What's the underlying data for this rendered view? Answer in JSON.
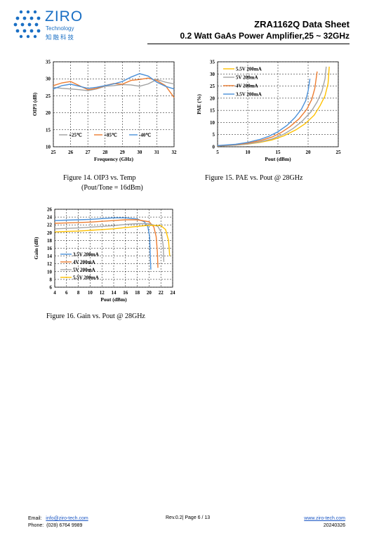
{
  "header": {
    "brand_name": "ZIRO",
    "brand_sub": "Technology",
    "brand_cn": "知融科技",
    "doc_title": "ZRA1162Q Data Sheet",
    "doc_subtitle": "0.2 Watt GaAs Power Amplifier,25 ~ 32GHz",
    "brand_color": "#1a6fc4"
  },
  "figures": [
    {
      "caption": "Figure 14. OIP3 vs. Temp",
      "caption2": "(Pout/Tone = 16dBm)"
    },
    {
      "caption": "Figure 15. PAE vs. Pout @ 28GHz"
    },
    {
      "caption": "Figure 16. Gain vs. Pout @ 28GHz"
    }
  ],
  "chart_data": [
    {
      "type": "line",
      "xlabel": "Frequency (GHz)",
      "ylabel": "OIP3 (dB)",
      "xlim": [
        25,
        32
      ],
      "ylim": [
        10,
        35
      ],
      "xticks": [
        "25",
        "26",
        "27",
        "28",
        "29",
        "30",
        "31",
        "32"
      ],
      "yticks": [
        "10",
        "15",
        "20",
        "25",
        "30",
        "35"
      ],
      "grid": "dashed",
      "legend": "bottom",
      "series": [
        {
          "name": "+25℃",
          "color": "#a0a0a0",
          "x": [
            25,
            25.5,
            26,
            26.5,
            27,
            27.5,
            28,
            28.5,
            29,
            29.5,
            30,
            30.5,
            31,
            31.5,
            32
          ],
          "y": [
            27.5,
            27.2,
            27.0,
            26.8,
            26.5,
            27.0,
            27.8,
            28.0,
            28.3,
            28.2,
            27.8,
            28.5,
            29.8,
            29.0,
            28.5
          ]
        },
        {
          "name": "+85℃",
          "color": "#ed7d31",
          "x": [
            25,
            25.5,
            26,
            26.5,
            27,
            27.5,
            28,
            28.5,
            29,
            29.5,
            30,
            30.5,
            31,
            31.5,
            32
          ],
          "y": [
            28.0,
            28.8,
            29.2,
            28.0,
            26.8,
            27.2,
            28.0,
            28.6,
            28.4,
            29.5,
            29.8,
            30.2,
            29.5,
            28.0,
            24.5
          ]
        },
        {
          "name": "-40℃",
          "color": "#4a90d9",
          "x": [
            25,
            25.5,
            26,
            26.5,
            27,
            27.5,
            28,
            28.5,
            29,
            29.5,
            30,
            30.5,
            31,
            31.5,
            32
          ],
          "y": [
            27.0,
            28.0,
            28.4,
            27.8,
            27.2,
            27.5,
            28.0,
            28.5,
            29.2,
            30.5,
            31.5,
            30.8,
            29.0,
            27.8,
            27.0
          ]
        }
      ]
    },
    {
      "type": "line",
      "xlabel": "Pout (dBm)",
      "ylabel": "PAE (%)",
      "xlim": [
        5,
        25
      ],
      "ylim": [
        0,
        35
      ],
      "xticks": [
        "5",
        "10",
        "15",
        "20",
        "25"
      ],
      "yticks": [
        "0",
        "5",
        "10",
        "15",
        "20",
        "25",
        "30",
        "35"
      ],
      "grid": "dashed",
      "legend": "top-left",
      "series": [
        {
          "name": "5.5V 200mA",
          "color": "#ffc000",
          "x": [
            5,
            8,
            10,
            12,
            14,
            16,
            18,
            19.5,
            21,
            22,
            22.8,
            23.3,
            23.5
          ],
          "y": [
            0.3,
            0.7,
            1.1,
            1.8,
            2.8,
            4.5,
            7.0,
            9.5,
            13.0,
            17.0,
            21.0,
            26.0,
            33.0
          ]
        },
        {
          "name": "5V    200mA",
          "color": "#a5a5a5",
          "x": [
            5,
            8,
            10,
            12,
            14,
            16,
            17.5,
            19,
            20.5,
            21.5,
            22.3,
            22.8,
            23.0
          ],
          "y": [
            0.3,
            0.7,
            1.2,
            2.0,
            3.2,
            5.2,
            7.5,
            10.5,
            14.5,
            18.5,
            23.0,
            28.0,
            33.0
          ]
        },
        {
          "name": "4V    200mA",
          "color": "#ed7d31",
          "x": [
            5,
            8,
            10,
            12,
            14,
            15.5,
            17,
            18.5,
            19.8,
            20.6,
            21.1,
            21.5
          ],
          "y": [
            0.4,
            0.9,
            1.5,
            2.5,
            4.0,
            5.8,
            8.3,
            11.5,
            15.5,
            19.5,
            24.0,
            31.0
          ]
        },
        {
          "name": "3.5V 200mA",
          "color": "#4a90d9",
          "x": [
            5,
            8,
            10,
            12,
            13.5,
            15,
            16.5,
            17.8,
            18.9,
            19.6,
            20.0,
            20.3
          ],
          "y": [
            0.5,
            1.0,
            1.8,
            3.0,
            4.3,
            6.2,
            8.8,
            12.0,
            15.5,
            19.0,
            23.0,
            28.0
          ]
        }
      ]
    },
    {
      "type": "line",
      "xlabel": "Pout (dBm)",
      "ylabel": "Gain (dB)",
      "xlim": [
        4,
        24
      ],
      "ylim": [
        6,
        26
      ],
      "xticks": [
        "4",
        "6",
        "8",
        "10",
        "12",
        "14",
        "16",
        "18",
        "20",
        "22",
        "24"
      ],
      "yticks": [
        "6",
        "8",
        "10",
        "12",
        "14",
        "16",
        "18",
        "20",
        "22",
        "24",
        "26"
      ],
      "grid": "dashed",
      "legend": "left",
      "series": [
        {
          "name": "3.5V  200mA",
          "color": "#4a90d9",
          "x": [
            4,
            6,
            8,
            10,
            12,
            14,
            16,
            18,
            19.2,
            19.8,
            20.1,
            20.2,
            20.3
          ],
          "y": [
            23.1,
            23.2,
            23.3,
            23.4,
            23.6,
            23.8,
            23.8,
            23.5,
            22.8,
            21.5,
            19.0,
            14.0,
            10.5
          ]
        },
        {
          "name": "4V     200mA",
          "color": "#ed7d31",
          "x": [
            4,
            6,
            8,
            10,
            12,
            14,
            16,
            18,
            20,
            20.8,
            21.2,
            21.4,
            21.5
          ],
          "y": [
            22.4,
            22.5,
            22.6,
            22.7,
            22.9,
            23.1,
            23.3,
            23.3,
            22.8,
            21.5,
            19.0,
            15.0,
            11.0
          ]
        },
        {
          "name": "5V     200mA",
          "color": "#a5a5a5",
          "x": [
            4,
            6,
            8,
            10,
            12,
            14,
            16,
            18,
            20,
            21.5,
            22.1,
            22.4,
            22.5
          ],
          "y": [
            21.0,
            21.1,
            21.2,
            21.4,
            21.6,
            21.8,
            22.1,
            22.3,
            22.3,
            21.6,
            20.0,
            16.5,
            12.5
          ]
        },
        {
          "name": "5.5V  200mA",
          "color": "#ffc000",
          "x": [
            4,
            6,
            8,
            10,
            12,
            14,
            16,
            18,
            20,
            22,
            22.8,
            23.3,
            23.5
          ],
          "y": [
            20.2,
            20.3,
            20.4,
            20.6,
            20.8,
            21.0,
            21.3,
            21.6,
            21.9,
            21.8,
            20.8,
            18.0,
            14.0
          ]
        }
      ]
    }
  ],
  "footer": {
    "email_label": "Email:",
    "email": "info@ziro-tech.com",
    "phone_label": "Phone:",
    "phone": "(028) 6764 9989",
    "page": "Rev.0.2| Page 6 / 13",
    "website": "www.ziro-tech.com",
    "date": "20240326"
  }
}
